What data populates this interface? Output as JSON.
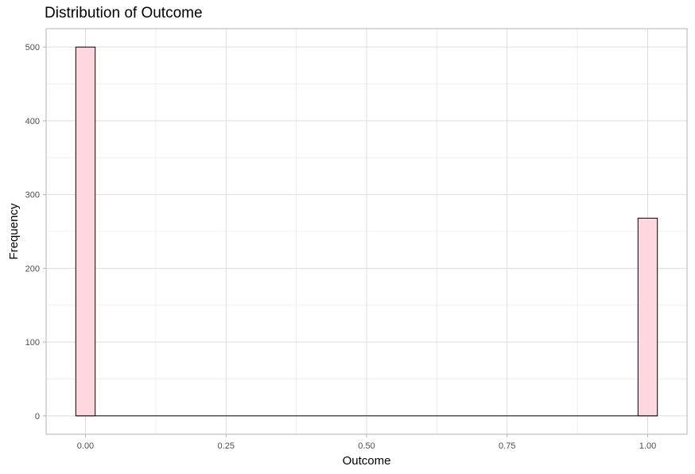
{
  "chart_data": {
    "type": "bar",
    "title": "Distribution of Outcome",
    "xlabel": "Outcome",
    "ylabel": "Frequency",
    "xlim": [
      -0.07,
      1.07
    ],
    "ylim": [
      -25,
      525
    ],
    "x_ticks": [
      0,
      0.25,
      0.5,
      0.75,
      1
    ],
    "x_tick_labels": [
      "0.00",
      "0.25",
      "0.50",
      "0.75",
      "1.00"
    ],
    "y_ticks": [
      0,
      100,
      200,
      300,
      400,
      500
    ],
    "y_tick_labels": [
      "0",
      "100",
      "200",
      "300",
      "400",
      "500"
    ],
    "bin_width": 0.0345,
    "bins": [
      {
        "x": 0.0,
        "count": 500
      },
      {
        "x": 1.0,
        "count": 268
      }
    ],
    "bar_fill": "#ffd7df",
    "bar_stroke": "#000000",
    "grid": true,
    "background": "#ffffff",
    "grid_color": "#dedede"
  }
}
